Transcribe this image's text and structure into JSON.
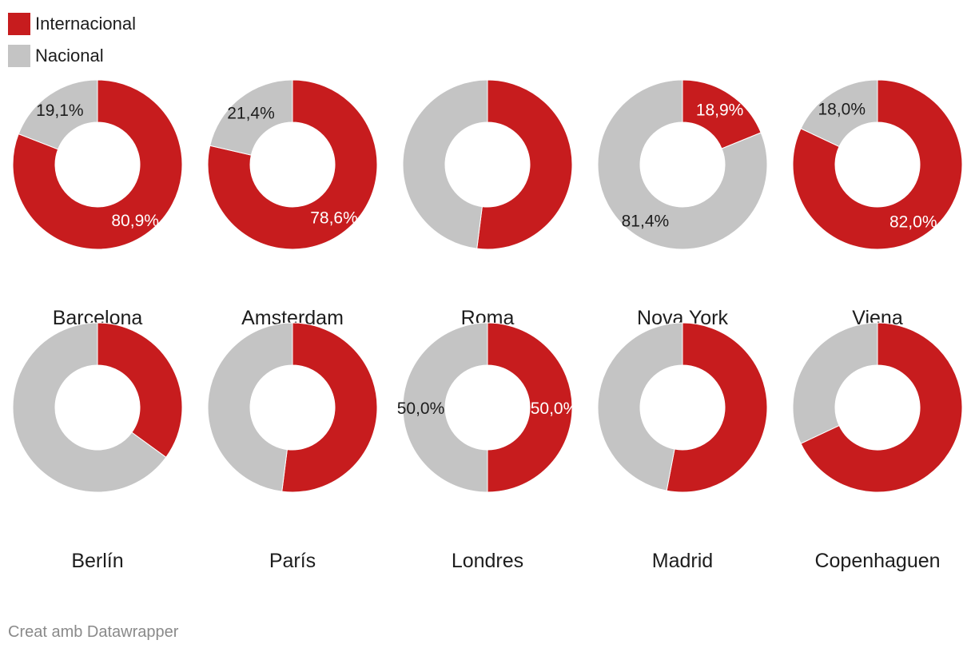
{
  "legend": [
    {
      "name": "Internacional",
      "color": "#c71c1e"
    },
    {
      "name": "Nacional",
      "color": "#c4c4c4"
    }
  ],
  "footer": "Creat amb Datawrapper",
  "chart_data": {
    "type": "pie",
    "variant": "donut",
    "series_names": [
      "Internacional",
      "Nacional"
    ],
    "colors": {
      "Internacional": "#c71c1e",
      "Nacional": "#c4c4c4"
    },
    "charts": [
      {
        "city": "Barcelona",
        "internacional": 80.9,
        "nacional": 19.1,
        "labels": {
          "internacional": "80,9%",
          "nacional": "19,1%"
        }
      },
      {
        "city": "Amsterdam",
        "internacional": 78.6,
        "nacional": 21.4,
        "labels": {
          "internacional": "78,6%",
          "nacional": "21,4%"
        }
      },
      {
        "city": "Roma",
        "internacional": 52.0,
        "nacional": 48.0,
        "labels": {
          "internacional": "",
          "nacional": ""
        }
      },
      {
        "city": "Nova York",
        "internacional": 18.9,
        "nacional": 81.4,
        "labels": {
          "internacional": "18,9%",
          "nacional": "81,4%"
        }
      },
      {
        "city": "Viena",
        "internacional": 82.0,
        "nacional": 18.0,
        "labels": {
          "internacional": "82,0%",
          "nacional": "18,0%"
        }
      },
      {
        "city": "Berlín",
        "internacional": 35.0,
        "nacional": 65.0,
        "labels": {
          "internacional": "",
          "nacional": ""
        }
      },
      {
        "city": "París",
        "internacional": 52.0,
        "nacional": 48.0,
        "labels": {
          "internacional": "",
          "nacional": ""
        }
      },
      {
        "city": "Londres",
        "internacional": 50.0,
        "nacional": 50.0,
        "labels": {
          "internacional": "50,0%",
          "nacional": "50,0%"
        }
      },
      {
        "city": "Madrid",
        "internacional": 53.0,
        "nacional": 47.0,
        "labels": {
          "internacional": "",
          "nacional": ""
        }
      },
      {
        "city": "Copenhaguen",
        "internacional": 68.0,
        "nacional": 32.0,
        "labels": {
          "internacional": "",
          "nacional": ""
        }
      }
    ]
  }
}
